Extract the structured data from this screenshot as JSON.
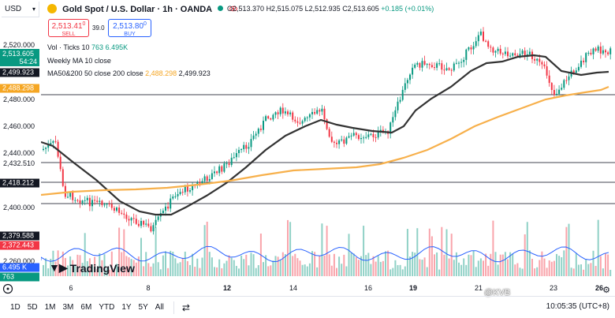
{
  "symbol": {
    "title": "Gold Spot / U.S. Dollar · 1h · OANDA",
    "currency": "USD"
  },
  "ohlc": {
    "o": "O2,513.370",
    "h": "H2,515.075",
    "l": "L2,512.935",
    "c": "C2,513.605",
    "change": "+0.185 (+0.01%)"
  },
  "trade": {
    "sell_price": "2,513.41",
    "sell_sup": "0",
    "sell_label": "SELL",
    "spread": "39.0",
    "buy_price": "2,513.80",
    "buy_sup": "0",
    "buy_label": "BUY"
  },
  "indicators": {
    "volume": {
      "label": "Vol · Ticks 10",
      "v1": "763",
      "v2": "6.495K"
    },
    "weekly_ma": {
      "label": "Weekly MA 10 close"
    },
    "ma_pair": {
      "label": "MA50&200 50 close 200 close",
      "v1": "2,488.298",
      "v2": "2,499.923"
    }
  },
  "yaxis": {
    "ticks": [
      "2,520.000",
      "2,480.000",
      "2,460.000",
      "2,440.000",
      "2,432.510",
      "2,400.000",
      "2,260.000"
    ],
    "price_labels": [
      {
        "text": "2,513.605",
        "sub": "54:24",
        "color": "#089981"
      },
      {
        "text": "2,499.923",
        "color": "#131722"
      },
      {
        "text": "2,488.298",
        "color": "#f5a623"
      },
      {
        "text": "2,418.212",
        "color": "#131722"
      },
      {
        "text": "2,379.588",
        "color": "#131722"
      },
      {
        "text": "2,372.443",
        "color": "#f23645"
      },
      {
        "text": "6.495 K",
        "color": "#2962ff"
      },
      {
        "text": "763",
        "color": "#089981"
      }
    ]
  },
  "xaxis": {
    "ticks": [
      "6",
      "8",
      "12",
      "14",
      "16",
      "19",
      "21",
      "23",
      "26"
    ],
    "bold": [
      "12",
      "19",
      "26"
    ]
  },
  "horizontal_levels": [
    {
      "price": "2,480.000"
    },
    {
      "price": "2,432.510"
    },
    {
      "price": "2,418.212"
    },
    {
      "price": "2,400.000"
    }
  ],
  "ranges": [
    "1D",
    "5D",
    "1M",
    "3M",
    "6M",
    "YTD",
    "1Y",
    "5Y",
    "All"
  ],
  "clock": "10:05:35 (UTC+8)",
  "branding": {
    "tradingview": "TradingView",
    "watermark": "@KVB"
  },
  "colors": {
    "up": "#089981",
    "down": "#f23645",
    "ma50": "#333333",
    "ma200": "#f7b04b",
    "volume_ma": "#2962ff",
    "buy": "#2962ff",
    "sell": "#f23645"
  }
}
